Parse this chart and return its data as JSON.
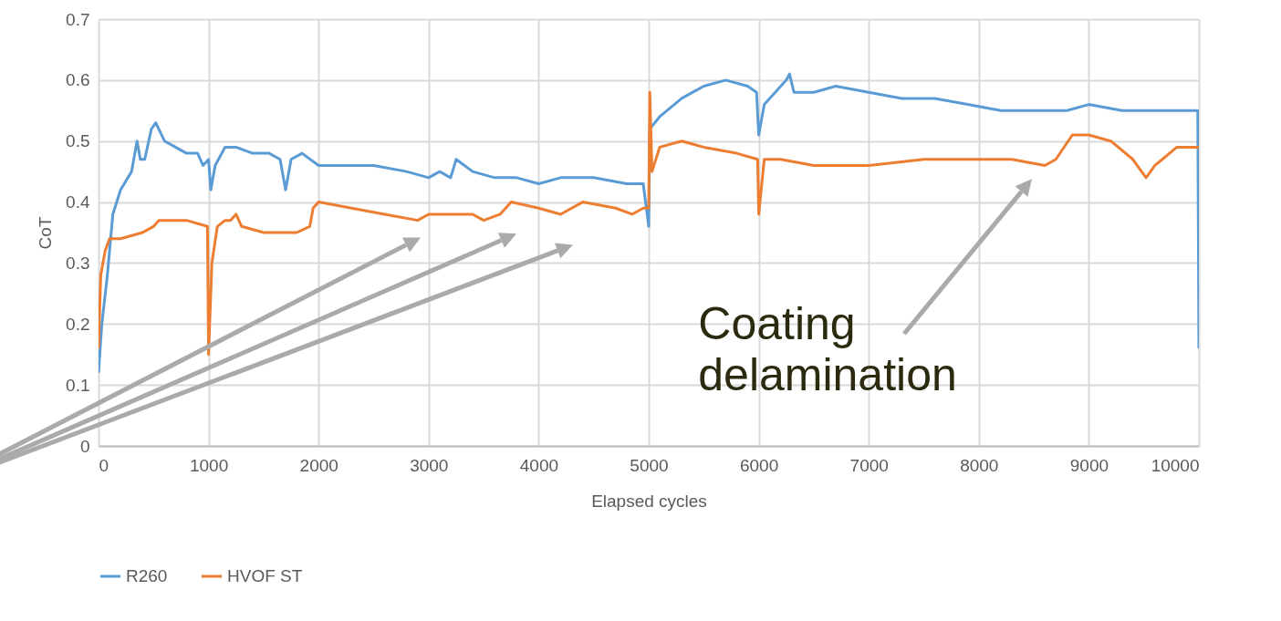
{
  "chart_data": {
    "type": "line",
    "xlabel": "Elapsed cycles",
    "ylabel": "CoT",
    "xlim": [
      0,
      10000
    ],
    "ylim": [
      0,
      0.7
    ],
    "xticks": [
      0,
      1000,
      2000,
      3000,
      4000,
      5000,
      6000,
      7000,
      8000,
      9000,
      10000
    ],
    "yticks": [
      0,
      0.1,
      0.2,
      0.3,
      0.4,
      0.5,
      0.6,
      0.7
    ],
    "grid": true,
    "legend": "bottom",
    "annotations": [
      "Coating delamination"
    ],
    "series": [
      {
        "name": "R260",
        "color": "#5b9bd5",
        "x": [
          0,
          30,
          80,
          130,
          200,
          300,
          350,
          380,
          420,
          480,
          520,
          600,
          700,
          800,
          900,
          950,
          1000,
          1020,
          1060,
          1150,
          1250,
          1400,
          1550,
          1650,
          1700,
          1750,
          1850,
          2000,
          2200,
          2500,
          2800,
          3000,
          3100,
          3200,
          3250,
          3400,
          3600,
          3800,
          4000,
          4200,
          4500,
          4800,
          4950,
          5000,
          5010,
          5100,
          5300,
          5500,
          5700,
          5900,
          5980,
          6000,
          6050,
          6150,
          6250,
          6280,
          6320,
          6500,
          6700,
          7000,
          7300,
          7600,
          7900,
          8200,
          8500,
          8800,
          9000,
          9300,
          9500,
          9800,
          9990,
          10000
        ],
        "values": [
          0.12,
          0.2,
          0.28,
          0.38,
          0.42,
          0.45,
          0.5,
          0.47,
          0.47,
          0.52,
          0.53,
          0.5,
          0.49,
          0.48,
          0.48,
          0.46,
          0.47,
          0.42,
          0.46,
          0.49,
          0.49,
          0.48,
          0.48,
          0.47,
          0.42,
          0.47,
          0.48,
          0.46,
          0.46,
          0.46,
          0.45,
          0.44,
          0.45,
          0.44,
          0.47,
          0.45,
          0.44,
          0.44,
          0.43,
          0.44,
          0.44,
          0.43,
          0.43,
          0.36,
          0.52,
          0.54,
          0.57,
          0.59,
          0.6,
          0.59,
          0.58,
          0.51,
          0.56,
          0.58,
          0.6,
          0.61,
          0.58,
          0.58,
          0.59,
          0.58,
          0.57,
          0.57,
          0.56,
          0.55,
          0.55,
          0.55,
          0.56,
          0.55,
          0.55,
          0.55,
          0.55,
          0.16
        ]
      },
      {
        "name": "HVOF ST",
        "color": "#ed7d31",
        "x": [
          0,
          20,
          60,
          100,
          200,
          400,
          500,
          550,
          800,
          990,
          1000,
          1030,
          1080,
          1150,
          1200,
          1250,
          1300,
          1500,
          1800,
          1920,
          1950,
          2000,
          2300,
          2600,
          2900,
          3000,
          3200,
          3400,
          3500,
          3650,
          3750,
          4000,
          4200,
          4300,
          4400,
          4700,
          4850,
          4950,
          5000,
          5010,
          5030,
          5100,
          5300,
          5500,
          5800,
          5990,
          6000,
          6050,
          6200,
          6500,
          7000,
          7500,
          8000,
          8300,
          8600,
          8700,
          8850,
          9000,
          9200,
          9400,
          9520,
          9600,
          9800,
          9900,
          10000
        ],
        "values": [
          0.16,
          0.28,
          0.32,
          0.34,
          0.34,
          0.35,
          0.36,
          0.37,
          0.37,
          0.36,
          0.15,
          0.3,
          0.36,
          0.37,
          0.37,
          0.38,
          0.36,
          0.35,
          0.35,
          0.36,
          0.39,
          0.4,
          0.39,
          0.38,
          0.37,
          0.38,
          0.38,
          0.38,
          0.37,
          0.38,
          0.4,
          0.39,
          0.38,
          0.39,
          0.4,
          0.39,
          0.38,
          0.39,
          0.39,
          0.58,
          0.45,
          0.49,
          0.5,
          0.49,
          0.48,
          0.47,
          0.38,
          0.47,
          0.47,
          0.46,
          0.46,
          0.47,
          0.47,
          0.47,
          0.46,
          0.47,
          0.51,
          0.51,
          0.5,
          0.47,
          0.44,
          0.46,
          0.49,
          0.49,
          0.49
        ]
      }
    ]
  }
}
